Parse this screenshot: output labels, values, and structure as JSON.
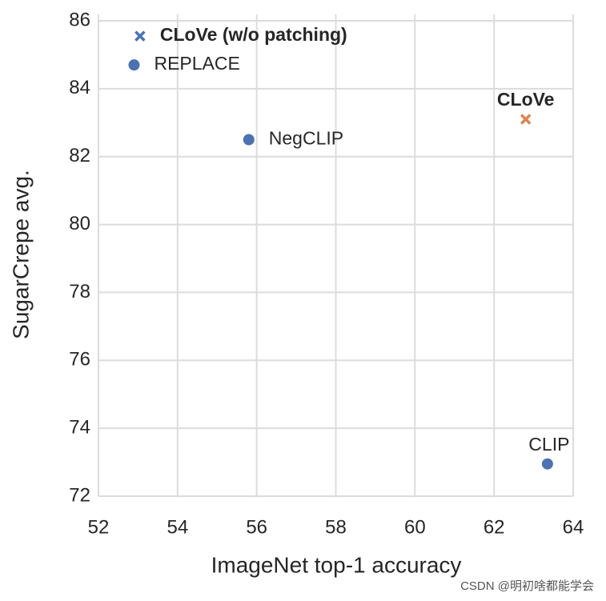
{
  "chart_data": {
    "type": "scatter",
    "xlabel": "ImageNet top-1 accuracy",
    "ylabel": "SugarCrepe avg.",
    "xlim": [
      52,
      64
    ],
    "ylim": [
      72,
      86
    ],
    "xticks": [
      52,
      54,
      56,
      58,
      60,
      62,
      64
    ],
    "yticks": [
      72,
      74,
      76,
      78,
      80,
      82,
      84,
      86
    ],
    "grid": true,
    "points": [
      {
        "label": "CLoVe (w/o patching)",
        "x": 53.05,
        "y": 85.55,
        "color": "#4c72b0",
        "marker": "x",
        "bold": true
      },
      {
        "label": "REPLACE",
        "x": 52.9,
        "y": 84.7,
        "color": "#4c72b0",
        "marker": "o",
        "bold": false
      },
      {
        "label": "NegCLIP",
        "x": 55.8,
        "y": 82.5,
        "color": "#4c72b0",
        "marker": "o",
        "bold": false
      },
      {
        "label": "CLoVe",
        "x": 62.8,
        "y": 83.1,
        "color": "#dd8452",
        "marker": "x",
        "bold": true
      },
      {
        "label": "CLIP",
        "x": 63.35,
        "y": 72.95,
        "color": "#4c72b0",
        "marker": "o",
        "bold": false
      }
    ]
  },
  "watermark": "CSDN @明初啥都能学会"
}
